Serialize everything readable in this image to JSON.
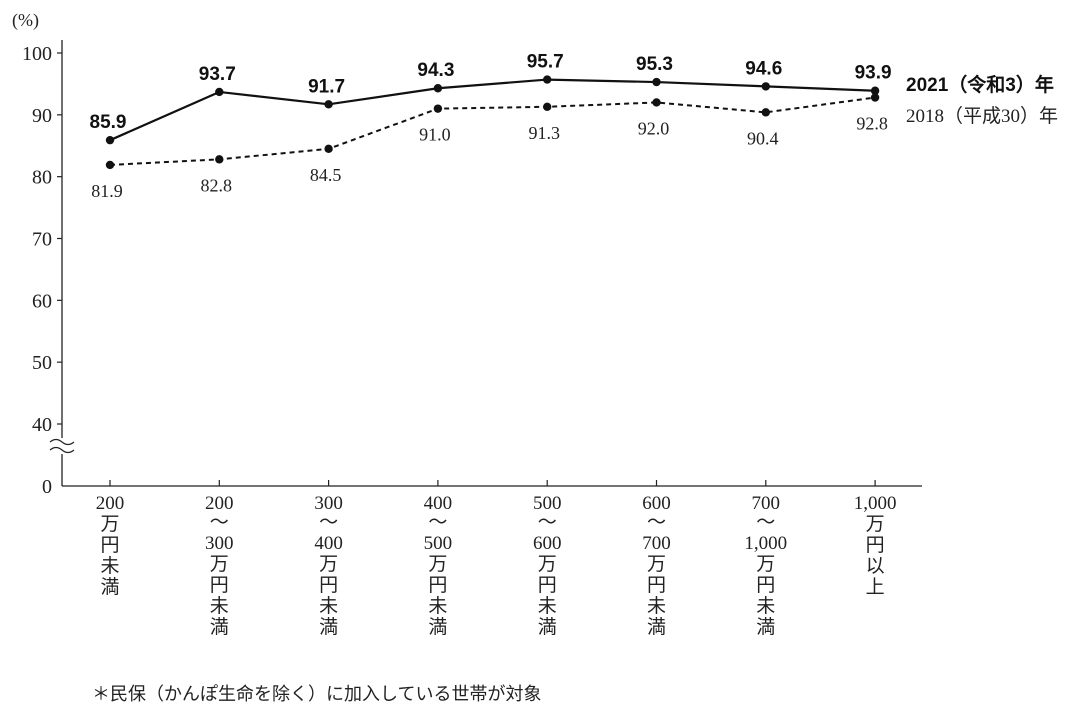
{
  "chart_data": {
    "type": "line",
    "ylabel": "(%)",
    "ylim": [
      0,
      100
    ],
    "yticks": [
      "100",
      "90",
      "80",
      "70",
      "60",
      "50",
      "40",
      "0"
    ],
    "axis_break": "≈",
    "categories": [
      [
        "200",
        "万",
        "円",
        "未",
        "満"
      ],
      [
        "200",
        "～",
        "300",
        "万",
        "円",
        "未",
        "満"
      ],
      [
        "300",
        "～",
        "400",
        "万",
        "円",
        "未",
        "満"
      ],
      [
        "400",
        "～",
        "500",
        "万",
        "円",
        "未",
        "満"
      ],
      [
        "500",
        "～",
        "600",
        "万",
        "円",
        "未",
        "満"
      ],
      [
        "600",
        "～",
        "700",
        "万",
        "円",
        "未",
        "満"
      ],
      [
        "700",
        "～",
        "1,000",
        "万",
        "円",
        "未",
        "満"
      ],
      [
        "1,000",
        "万",
        "円",
        "以",
        "上"
      ]
    ],
    "series": [
      {
        "name": "2021（令和3）年",
        "style": "solid",
        "values": [
          85.9,
          93.7,
          91.7,
          94.3,
          95.7,
          95.3,
          94.6,
          93.9
        ],
        "labels": [
          "85.9",
          "93.7",
          "91.7",
          "94.3",
          "95.7",
          "95.3",
          "94.6",
          "93.9"
        ]
      },
      {
        "name": "2018（平成30）年",
        "style": "dashed",
        "values": [
          81.9,
          82.8,
          84.5,
          91.0,
          91.3,
          92.0,
          90.4,
          92.8
        ],
        "labels": [
          "81.9",
          "82.8",
          "84.5",
          "91.0",
          "91.3",
          "92.0",
          "90.4",
          "92.8"
        ]
      }
    ],
    "line_color": "#111111"
  },
  "footnote": "＊民保（かんぽ生命を除く）に加入している世帯が対象"
}
